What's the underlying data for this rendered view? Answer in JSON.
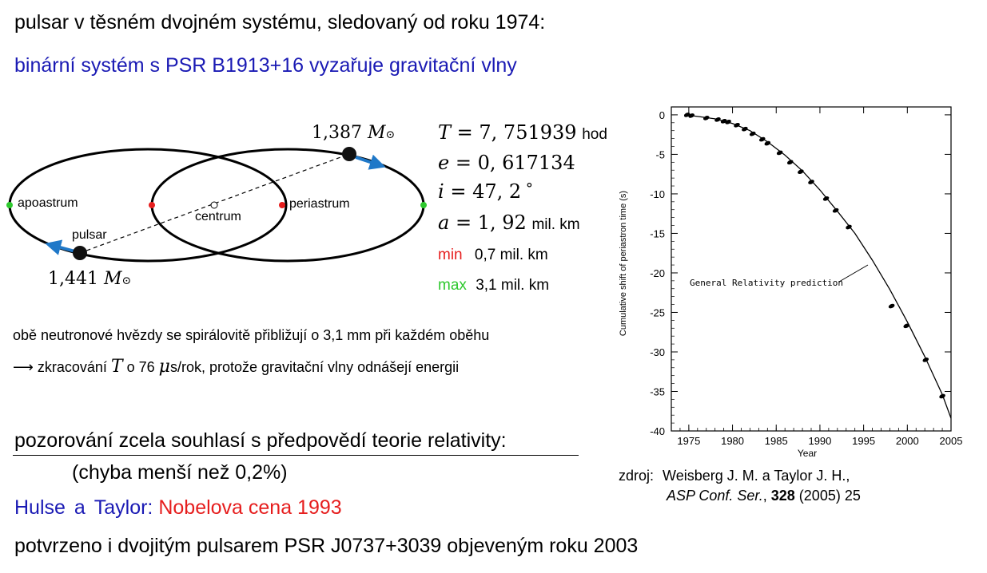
{
  "heading": {
    "line1": "pulsar v těsném dvojném systému, sledovaný od roku 1974:",
    "line2": "binární systém s PSR B1913+16 vyzařuje gravitační vlny"
  },
  "orbit": {
    "mass_companion": "1,387",
    "mass_pulsar": "1,441",
    "mass_symbol": "M",
    "label_apoastrum": "apoastrum",
    "label_periastrum": "periastrum",
    "label_centrum": "centrum",
    "label_pulsar": "pulsar"
  },
  "params": {
    "T_sym": "T",
    "T_value": "7, 751939",
    "T_unit": "hod",
    "e_sym": "e",
    "e_value": "0, 617134",
    "i_sym": "i",
    "i_value": "47, 2",
    "a_sym": "a",
    "a_value": "1, 92",
    "a_unit": "mil. km",
    "min_label": "min",
    "min_value": "0,7 mil. km",
    "max_label": "max",
    "max_value": "3,1 mil. km"
  },
  "notes": {
    "line1": "obě neutronové hvězdy se spirálovitě přibližují o 3,1 mm při každém oběhu",
    "line2_arrow": "⟶",
    "line2_a": "zkracování",
    "line2_T": "T",
    "line2_b": "o 76",
    "line2_mu": "μ",
    "line2_c": "s/rok, protože gravitační vlny odnášejí energii"
  },
  "conclusion": {
    "statement": "pozorování zcela souhlasí s předpovědí teorie relativity:",
    "error": "(chyba menší než 0,2%)",
    "hulse": "Hulse",
    "and": "a",
    "taylor": "Taylor:",
    "nobel": "Nobelova cena 1993",
    "confirmed": "potvrzeno i dvojitým pulsarem PSR J0737+3039 objeveným roku 2003"
  },
  "source": {
    "label": "zdroj:",
    "authors": "Weisberg J. M. a Taylor J. H.,",
    "journal": "ASP Conf. Ser.",
    "volume": "328",
    "rest": "(2005) 25"
  },
  "colors": {
    "blue_text": "#1a1ab4",
    "red": "#e61e1e",
    "green": "#2ec82e",
    "arrow_blue": "#1f78c8"
  },
  "chart_data": {
    "type": "scatter",
    "title": "",
    "xlabel": "Year",
    "ylabel": "Cumulative shift of periastron time (s)",
    "xlim": [
      1973,
      2005
    ],
    "ylim": [
      -40,
      1
    ],
    "xticks": [
      1975,
      1980,
      1985,
      1990,
      1995,
      2000,
      2005
    ],
    "yticks": [
      0,
      -5,
      -10,
      -15,
      -20,
      -25,
      -30,
      -35,
      -40
    ],
    "annotation": "General Relativity prediction",
    "series": [
      {
        "kind": "points",
        "x": [
          1974.8,
          1975.3,
          1977.0,
          1978.3,
          1979.0,
          1979.5,
          1980.5,
          1981.4,
          1982.3,
          1983.4,
          1984.0,
          1985.4,
          1986.6,
          1987.8,
          1989.0,
          1990.7,
          1991.8,
          1993.3,
          1998.2,
          1999.9,
          2002.1,
          2004.0
        ],
        "y": [
          0.0,
          -0.1,
          -0.4,
          -0.6,
          -0.8,
          -0.9,
          -1.3,
          -1.8,
          -2.4,
          -3.1,
          -3.6,
          -4.8,
          -6.0,
          -7.2,
          -8.5,
          -10.6,
          -12.1,
          -14.2,
          -24.2,
          -26.7,
          -31.0,
          -35.6
        ]
      },
      {
        "kind": "curve",
        "x": [
          1974.5,
          1976,
          1978,
          1980,
          1982,
          1984,
          1986,
          1988,
          1990,
          1992,
          1994,
          1996,
          1998,
          2000,
          2002,
          2004,
          2005
        ],
        "y": [
          0.0,
          -0.2,
          -0.5,
          -1.1,
          -2.0,
          -3.4,
          -5.1,
          -7.1,
          -9.5,
          -12.2,
          -15.0,
          -18.4,
          -22.1,
          -26.2,
          -30.6,
          -35.4,
          -38.4
        ]
      }
    ]
  }
}
